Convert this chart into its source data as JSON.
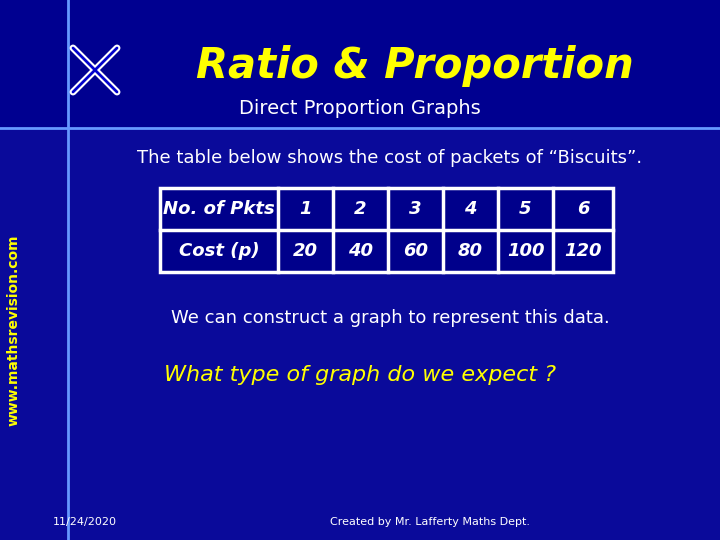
{
  "title": "Ratio & Proportion",
  "subtitle": "Direct Proportion Graphs",
  "body_text1": "The table below shows the cost of packets of “Biscuits”.",
  "table_headers": [
    "No. of Pkts",
    "1",
    "2",
    "3",
    "4",
    "5",
    "6"
  ],
  "table_row2": [
    "Cost (p)",
    "20",
    "40",
    "60",
    "80",
    "100",
    "120"
  ],
  "body_text2": "We can construct a graph to represent this data.",
  "body_text3": "What type of graph do we expect ?",
  "footer_left": "11/24/2020",
  "footer_right": "Created by Mr. Lafferty Maths Dept.",
  "bg_color": "#0a0a9a",
  "header_bg": "#0a0a8a",
  "title_color": "#ffff00",
  "subtitle_color": "#ffffff",
  "body_color": "#ffffff",
  "highlight_color": "#ffff00",
  "table_bg": "#00008b",
  "table_border": "#ffffff",
  "accent_line_color": "#6699ff",
  "sidebar_text_color": "#ffff00",
  "www_text": "www.mathsrevision.com"
}
